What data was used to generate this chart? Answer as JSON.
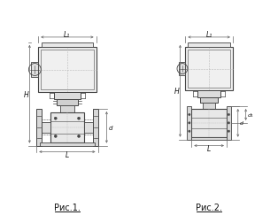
{
  "fig1_label": "Рис.1.",
  "fig2_label": "Рис.2.",
  "bg_color": "#ffffff",
  "line_color": "#444444",
  "dim_color": "#666666",
  "text_color": "#111111",
  "fig_width": 3.14,
  "fig_height": 2.53,
  "dpi": 100,
  "label_L1": "L₁",
  "label_H": "H",
  "label_L": "L",
  "label_d1": "d₁",
  "label_d": "d"
}
